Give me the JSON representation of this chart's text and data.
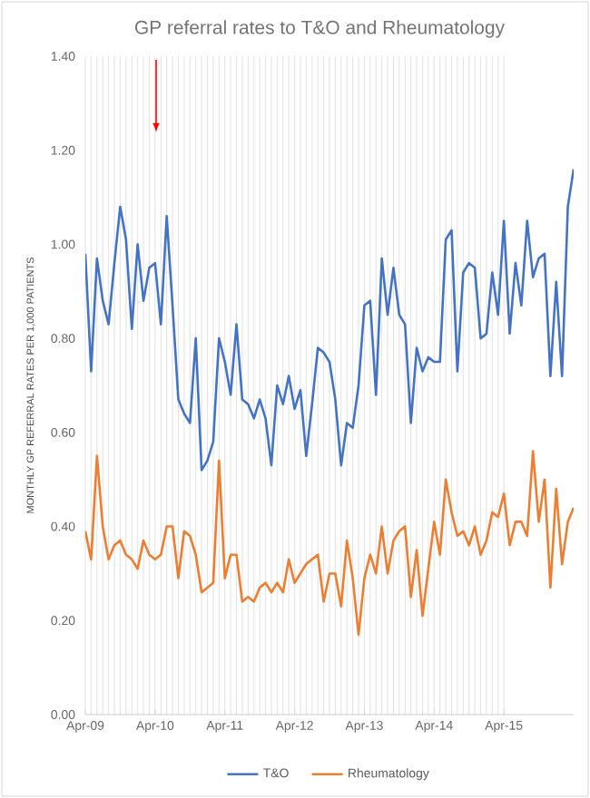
{
  "chart_data": {
    "type": "line",
    "title": "GP referral rates to T&O and Rheumatology",
    "ylabel": "MONTHLY GP REFERRAL RATES PER 1,000 PATIENTS",
    "x": [
      "2009-04",
      "2009-05",
      "2009-06",
      "2009-07",
      "2009-08",
      "2009-09",
      "2009-10",
      "2009-11",
      "2009-12",
      "2010-01",
      "2010-02",
      "2010-03",
      "2010-04",
      "2010-05",
      "2010-06",
      "2010-07",
      "2010-08",
      "2010-09",
      "2010-10",
      "2010-11",
      "2010-12",
      "2011-01",
      "2011-02",
      "2011-03",
      "2011-04",
      "2011-05",
      "2011-06",
      "2011-07",
      "2011-08",
      "2011-09",
      "2011-10",
      "2011-11",
      "2011-12",
      "2012-01",
      "2012-02",
      "2012-03",
      "2012-04",
      "2012-05",
      "2012-06",
      "2012-07",
      "2012-08",
      "2012-09",
      "2012-10",
      "2012-11",
      "2012-12",
      "2013-01",
      "2013-02",
      "2013-03",
      "2013-04",
      "2013-05",
      "2013-06",
      "2013-07",
      "2013-08",
      "2013-09",
      "2013-10",
      "2013-11",
      "2013-12",
      "2014-01",
      "2014-02",
      "2014-03",
      "2014-04",
      "2014-05",
      "2014-06",
      "2014-07",
      "2014-08",
      "2014-09",
      "2014-10",
      "2014-11",
      "2014-12",
      "2015-01",
      "2015-02",
      "2015-03",
      "2015-04",
      "2015-05",
      "2015-06",
      "2015-07",
      "2015-08",
      "2015-09",
      "2015-10",
      "2015-11",
      "2015-12",
      "2016-01",
      "2016-02",
      "2016-03",
      "2016-04"
    ],
    "series": [
      {
        "name": "T&O",
        "color": "#4472c4",
        "values": [
          0.98,
          0.73,
          0.97,
          0.88,
          0.83,
          0.96,
          1.08,
          1.01,
          0.82,
          1.0,
          0.88,
          0.95,
          0.96,
          0.83,
          1.06,
          0.87,
          0.67,
          0.64,
          0.62,
          0.8,
          0.52,
          0.54,
          0.58,
          0.8,
          0.75,
          0.68,
          0.83,
          0.67,
          0.66,
          0.63,
          0.67,
          0.63,
          0.53,
          0.7,
          0.66,
          0.72,
          0.65,
          0.69,
          0.55,
          0.66,
          0.78,
          0.77,
          0.75,
          0.67,
          0.53,
          0.62,
          0.61,
          0.7,
          0.87,
          0.88,
          0.68,
          0.97,
          0.85,
          0.95,
          0.85,
          0.83,
          0.62,
          0.78,
          0.73,
          0.76,
          0.75,
          0.75,
          1.01,
          1.03,
          0.73,
          0.94,
          0.96,
          0.95,
          0.8,
          0.81,
          0.94,
          0.85,
          1.05,
          0.81,
          0.96,
          0.87,
          1.05,
          0.93,
          0.97,
          0.98,
          0.72,
          0.92,
          0.72,
          1.08,
          1.16
        ]
      },
      {
        "name": "Rheumatology",
        "color": "#ed7d31",
        "values": [
          0.39,
          0.33,
          0.55,
          0.4,
          0.33,
          0.36,
          0.37,
          0.34,
          0.33,
          0.31,
          0.37,
          0.34,
          0.33,
          0.34,
          0.4,
          0.4,
          0.29,
          0.39,
          0.38,
          0.34,
          0.26,
          0.27,
          0.28,
          0.54,
          0.29,
          0.34,
          0.34,
          0.24,
          0.25,
          0.24,
          0.27,
          0.28,
          0.26,
          0.28,
          0.26,
          0.33,
          0.28,
          0.3,
          0.32,
          0.33,
          0.34,
          0.24,
          0.3,
          0.3,
          0.23,
          0.37,
          0.29,
          0.17,
          0.29,
          0.34,
          0.3,
          0.4,
          0.3,
          0.37,
          0.39,
          0.4,
          0.25,
          0.35,
          0.21,
          0.31,
          0.41,
          0.34,
          0.5,
          0.43,
          0.38,
          0.39,
          0.36,
          0.4,
          0.34,
          0.37,
          0.43,
          0.42,
          0.47,
          0.36,
          0.41,
          0.41,
          0.38,
          0.56,
          0.41,
          0.5,
          0.27,
          0.48,
          0.32,
          0.41,
          0.44
        ]
      }
    ],
    "xlim": [
      "2009-04",
      "2016-04"
    ],
    "xticks": [
      {
        "value": "2009-04",
        "label": "Apr-09"
      },
      {
        "value": "2010-04",
        "label": "Apr-10"
      },
      {
        "value": "2011-04",
        "label": "Apr-11"
      },
      {
        "value": "2012-04",
        "label": "Apr-12"
      },
      {
        "value": "2013-04",
        "label": "Apr-13"
      },
      {
        "value": "2014-04",
        "label": "Apr-14"
      },
      {
        "value": "2015-04",
        "label": "Apr-15"
      }
    ],
    "ylim": [
      0,
      1.4
    ],
    "yticks": [
      {
        "value": 0,
        "label": "0.00"
      },
      {
        "value": 0.2,
        "label": "0.20"
      },
      {
        "value": 0.4,
        "label": "0.40"
      },
      {
        "value": 0.6,
        "label": "0.60"
      },
      {
        "value": 0.8,
        "label": "0.80"
      },
      {
        "value": 1.0,
        "label": "1.00"
      },
      {
        "value": 1.2,
        "label": "1.20"
      },
      {
        "value": 1.4,
        "label": "1.40"
      }
    ],
    "grid": "x",
    "legend": "bottom",
    "marker": "none",
    "line_style": "solid"
  }
}
